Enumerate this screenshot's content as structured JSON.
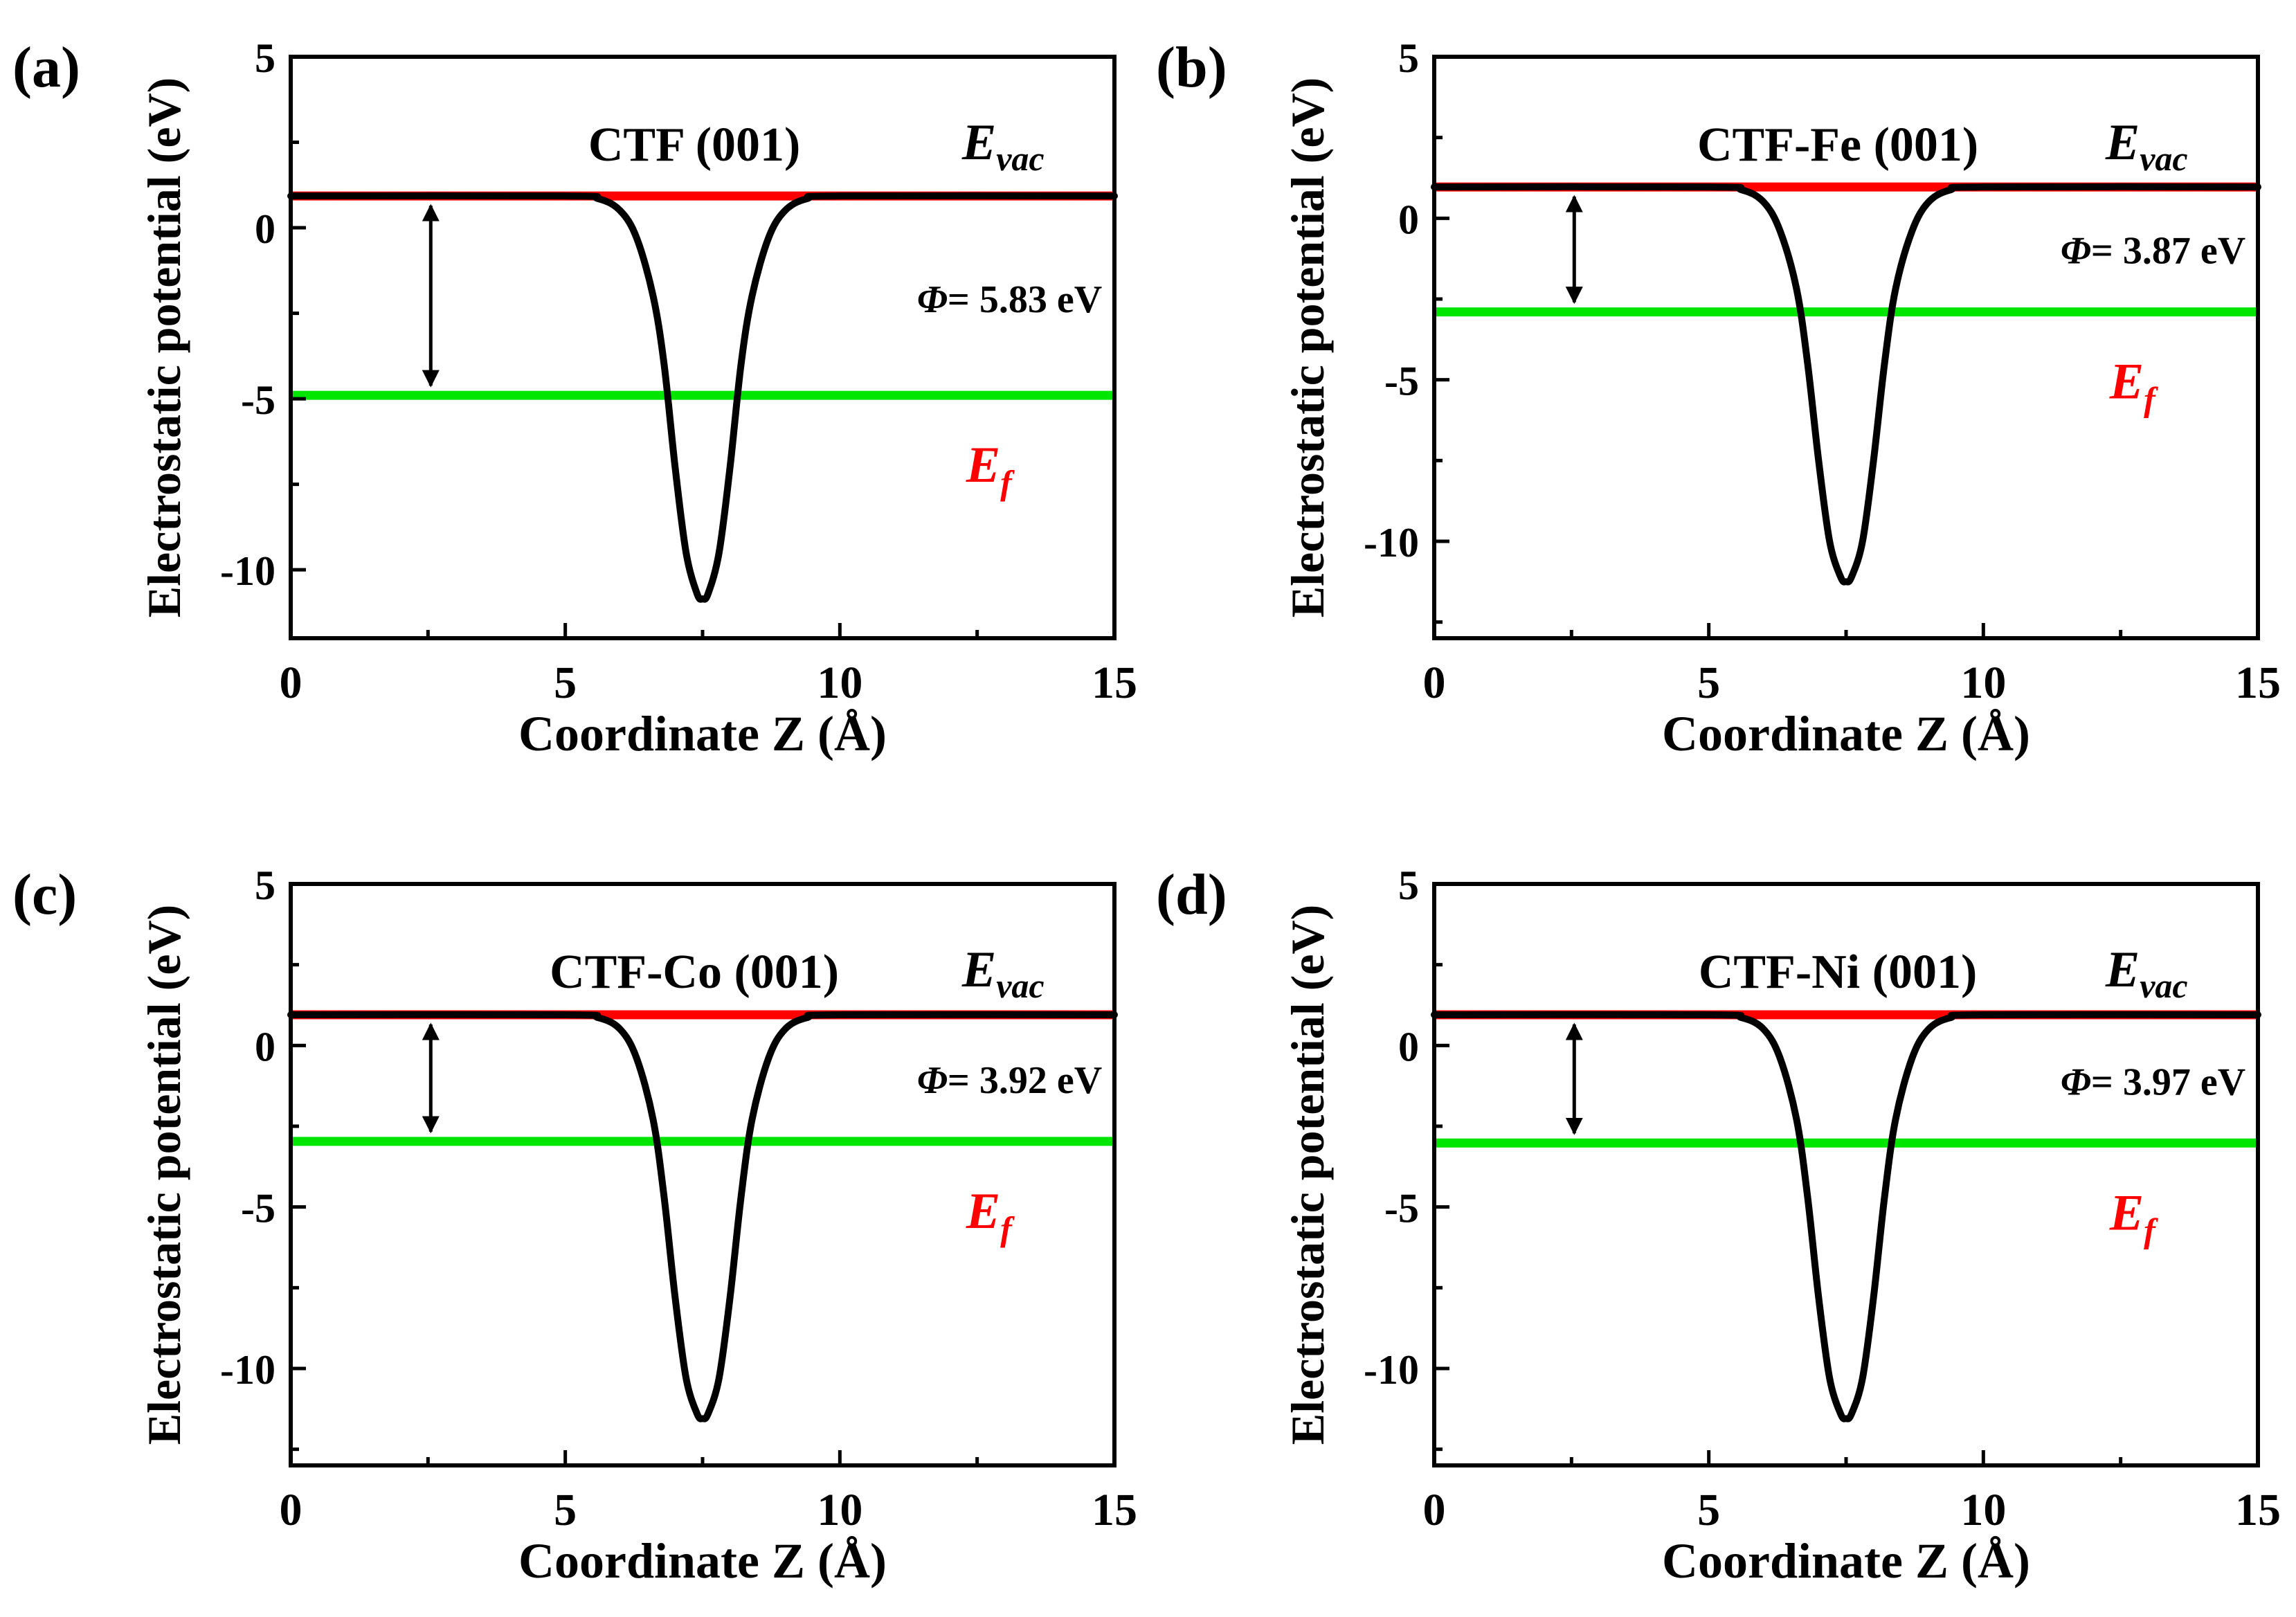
{
  "chart_data": [
    {
      "panel_label": "(a)",
      "type": "line",
      "title": "CTF (001)",
      "xlabel": "Coordinate Z (Å)",
      "ylabel": "Electrostatic potential (eV)",
      "xlim": [
        0,
        15
      ],
      "ylim": [
        -12,
        5
      ],
      "xticks": [
        0,
        5,
        10,
        15
      ],
      "yticks": [
        -10,
        -5,
        0,
        5
      ],
      "xtick_labels": [
        "0",
        "5",
        "10",
        "15"
      ],
      "ytick_labels": [
        "-10",
        "-5",
        "0",
        "5"
      ],
      "series": [
        {
          "name": "potential",
          "color": "#000000",
          "x": [
            0,
            5,
            5.6,
            6.0,
            6.3,
            6.6,
            6.8,
            7.0,
            7.2,
            7.4,
            7.5,
            7.6,
            7.8,
            8.0,
            8.2,
            8.4,
            8.7,
            9.0,
            9.4,
            10,
            15
          ],
          "values": [
            0.93,
            0.93,
            0.85,
            0.5,
            -0.3,
            -2.0,
            -4.0,
            -7.0,
            -9.5,
            -10.7,
            -10.85,
            -10.7,
            -9.5,
            -7.0,
            -4.0,
            -2.0,
            -0.3,
            0.5,
            0.85,
            0.93,
            0.93
          ]
        }
      ],
      "e_vac": 0.93,
      "e_f": -4.9,
      "e_vac_label": {
        "main": "E",
        "sub": "vac"
      },
      "e_f_label": {
        "main": "E",
        "sub": "f"
      },
      "arrow_x": 2.55,
      "annotation": {
        "symbol": "Φ",
        "text": "= 5.83 eV"
      },
      "colors": {
        "vac": "#ff0000",
        "fermi": "#00e600",
        "curve": "#000000",
        "ef_label": "#ff0000"
      }
    },
    {
      "panel_label": "(b)",
      "type": "line",
      "title": "CTF-Fe (001)",
      "xlabel": "Coordinate Z (Å)",
      "ylabel": "Electrostatic potential (eV)",
      "xlim": [
        0,
        15
      ],
      "ylim": [
        -13,
        5
      ],
      "xticks": [
        0,
        5,
        10,
        15
      ],
      "yticks": [
        -10,
        -5,
        0,
        5
      ],
      "xtick_labels": [
        "0",
        "5",
        "10",
        "15"
      ],
      "ytick_labels": [
        "-10",
        "-5",
        "0",
        "5"
      ],
      "series": [
        {
          "name": "potential",
          "color": "#000000",
          "x": [
            0,
            5,
            5.6,
            6.0,
            6.3,
            6.6,
            6.8,
            7.0,
            7.2,
            7.4,
            7.5,
            7.6,
            7.8,
            8.0,
            8.2,
            8.4,
            8.7,
            9.0,
            9.4,
            10,
            15
          ],
          "values": [
            0.97,
            0.97,
            0.88,
            0.5,
            -0.4,
            -2.2,
            -4.5,
            -7.5,
            -10.0,
            -11.1,
            -11.25,
            -11.1,
            -10.0,
            -7.5,
            -4.5,
            -2.2,
            -0.4,
            0.5,
            0.88,
            0.97,
            0.97
          ]
        }
      ],
      "e_vac": 0.97,
      "e_f": -2.9,
      "e_vac_label": {
        "main": "E",
        "sub": "vac"
      },
      "e_f_label": {
        "main": "E",
        "sub": "f"
      },
      "arrow_x": 2.55,
      "annotation": {
        "symbol": "Φ",
        "text": "= 3.87 eV"
      },
      "colors": {
        "vac": "#ff0000",
        "fermi": "#00e600",
        "curve": "#000000",
        "ef_label": "#ff0000"
      }
    },
    {
      "panel_label": "(c)",
      "type": "line",
      "title": "CTF-Co (001)",
      "xlabel": "Coordinate Z (Å)",
      "ylabel": "Electrostatic potential (eV)",
      "xlim": [
        0,
        15
      ],
      "ylim": [
        -13,
        5
      ],
      "xticks": [
        0,
        5,
        10,
        15
      ],
      "yticks": [
        -10,
        -5,
        0,
        5
      ],
      "xtick_labels": [
        "0",
        "5",
        "10",
        "15"
      ],
      "ytick_labels": [
        "-10",
        "-5",
        "0",
        "5"
      ],
      "series": [
        {
          "name": "potential",
          "color": "#000000",
          "x": [
            0,
            5,
            5.6,
            6.0,
            6.3,
            6.6,
            6.8,
            7.0,
            7.2,
            7.4,
            7.5,
            7.6,
            7.8,
            8.0,
            8.2,
            8.4,
            8.7,
            9.0,
            9.4,
            10,
            15
          ],
          "values": [
            0.95,
            0.95,
            0.86,
            0.5,
            -0.4,
            -2.3,
            -4.7,
            -7.8,
            -10.3,
            -11.4,
            -11.55,
            -11.4,
            -10.3,
            -7.8,
            -4.7,
            -2.3,
            -0.4,
            0.5,
            0.86,
            0.95,
            0.95
          ]
        }
      ],
      "e_vac": 0.95,
      "e_f": -2.97,
      "e_vac_label": {
        "main": "E",
        "sub": "vac"
      },
      "e_f_label": {
        "main": "E",
        "sub": "f"
      },
      "arrow_x": 2.55,
      "annotation": {
        "symbol": "Φ",
        "text": "= 3.92 eV"
      },
      "colors": {
        "vac": "#ff0000",
        "fermi": "#00e600",
        "curve": "#000000",
        "ef_label": "#ff0000"
      }
    },
    {
      "panel_label": "(d)",
      "type": "line",
      "title": "CTF-Ni (001)",
      "xlabel": "Coordinate Z (Å)",
      "ylabel": "Electrostatic potential (eV)",
      "xlim": [
        0,
        15
      ],
      "ylim": [
        -13,
        5
      ],
      "xticks": [
        0,
        5,
        10,
        15
      ],
      "yticks": [
        -10,
        -5,
        0,
        5
      ],
      "xtick_labels": [
        "0",
        "5",
        "10",
        "15"
      ],
      "ytick_labels": [
        "-10",
        "-5",
        "0",
        "5"
      ],
      "series": [
        {
          "name": "potential",
          "color": "#000000",
          "x": [
            0,
            5,
            5.6,
            6.0,
            6.3,
            6.6,
            6.8,
            7.0,
            7.2,
            7.4,
            7.5,
            7.6,
            7.8,
            8.0,
            8.2,
            8.4,
            8.7,
            9.0,
            9.4,
            10,
            15
          ],
          "values": [
            0.95,
            0.95,
            0.86,
            0.5,
            -0.4,
            -2.3,
            -4.7,
            -7.8,
            -10.3,
            -11.4,
            -11.55,
            -11.4,
            -10.3,
            -7.8,
            -4.7,
            -2.3,
            -0.4,
            0.5,
            0.86,
            0.95,
            0.95
          ]
        }
      ],
      "e_vac": 0.95,
      "e_f": -3.02,
      "e_vac_label": {
        "main": "E",
        "sub": "vac"
      },
      "e_f_label": {
        "main": "E",
        "sub": "f"
      },
      "arrow_x": 2.55,
      "annotation": {
        "symbol": "Φ",
        "text": "= 3.97 eV"
      },
      "colors": {
        "vac": "#ff0000",
        "fermi": "#00e600",
        "curve": "#000000",
        "ef_label": "#ff0000"
      }
    }
  ]
}
